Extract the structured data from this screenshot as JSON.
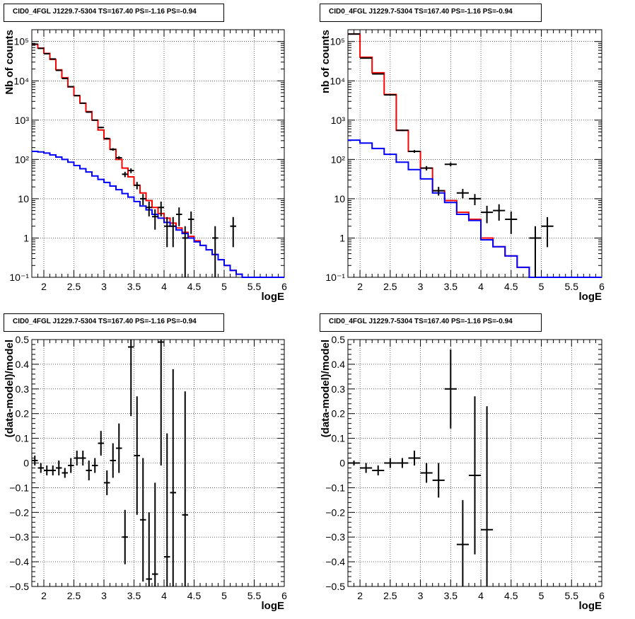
{
  "panels_title": "CID0_4FGL J1229.7-5304 TS=167.40 PS=-1.16 PS=-0.94",
  "colors": {
    "data": "#000000",
    "total_model": "#ff0000",
    "background_model": "#0000ff"
  },
  "chart_data": [
    {
      "type": "line",
      "panel": "top-left",
      "title": "CID0_4FGL J1229.7-5304 TS=167.40 PS=-1.16 PS=-0.94",
      "xlabel": "logE",
      "ylabel": "Nb of counts",
      "xlim": [
        1.8,
        6
      ],
      "ylim": [
        0.1,
        200000
      ],
      "yscale": "log",
      "grid": true,
      "xticks": [
        "2",
        "2.5",
        "3",
        "3.5",
        "4",
        "4.5",
        "5",
        "5.5",
        "6"
      ],
      "yticks": [
        "10^-1",
        "1",
        "10",
        "10^2",
        "10^3",
        "10^4",
        "10^5"
      ],
      "bin_width": 0.1,
      "bin_edges_start": 1.8,
      "series": [
        {
          "role": "total_model",
          "style": "step",
          "color": "#ff0000",
          "values": [
            85000,
            68000,
            50000,
            35000,
            19000,
            12000,
            7000,
            4200,
            2700,
            1650,
            1000,
            560,
            330,
            180,
            100,
            60,
            36,
            22,
            14,
            9,
            6,
            4.2,
            3.2,
            2.4,
            1.8,
            1.4,
            1.1,
            0.85,
            0.65,
            0.5,
            0.38,
            0.28,
            0.2,
            0.15,
            0.12,
            0.1,
            0.1,
            0.1,
            0.1,
            0.1,
            0.1,
            0.1
          ]
        },
        {
          "role": "background_model",
          "style": "step",
          "color": "#0000ff",
          "values": [
            160,
            155,
            145,
            130,
            115,
            100,
            85,
            70,
            58,
            48,
            38,
            31,
            26,
            21,
            17,
            13.5,
            11,
            8.5,
            6.5,
            5.2,
            4.0,
            3.2,
            2.5,
            2.0,
            1.6,
            1.3,
            1.0,
            0.8,
            0.65,
            0.5,
            0.38,
            0.28,
            0.2,
            0.15,
            0.12,
            0.1,
            0.1,
            0.1,
            0.1,
            0.1,
            0.1,
            0.1
          ]
        },
        {
          "role": "data",
          "style": "errorbar",
          "color": "#000000",
          "x": [
            1.85,
            1.95,
            2.05,
            2.15,
            2.25,
            2.35,
            2.45,
            2.55,
            2.65,
            2.75,
            2.85,
            2.95,
            3.05,
            3.15,
            3.25,
            3.35,
            3.45,
            3.55,
            3.65,
            3.75,
            3.85,
            3.95,
            4.05,
            4.15,
            4.25,
            4.35,
            4.45,
            4.85,
            5.15
          ],
          "values": [
            86000,
            67000,
            49000,
            36000,
            18500,
            11500,
            7100,
            4200,
            2700,
            1600,
            1000,
            650,
            340,
            180,
            110,
            42,
            52,
            22,
            10,
            6,
            3.5,
            6,
            2,
            2,
            4,
            1,
            3,
            1,
            2
          ]
        }
      ]
    },
    {
      "type": "line",
      "panel": "top-right",
      "title": "CID0_4FGL J1229.7-5304 TS=167.40 PS=-1.16 PS=-0.94",
      "xlabel": "logE",
      "ylabel": "nb of counts",
      "xlim": [
        1.8,
        6
      ],
      "ylim": [
        0.1,
        200000
      ],
      "yscale": "log",
      "grid": true,
      "xticks": [
        "2",
        "2.5",
        "3",
        "3.5",
        "4",
        "4.5",
        "5",
        "5.5",
        "6"
      ],
      "yticks": [
        "10^-1",
        "1",
        "10",
        "10^2",
        "10^3",
        "10^4",
        "10^5"
      ],
      "bin_width": 0.2,
      "bin_edges_start": 1.8,
      "series": [
        {
          "role": "total_model",
          "style": "step",
          "color": "#ff0000",
          "values": [
            155000,
            40000,
            16000,
            4500,
            550,
            160,
            60,
            16,
            9,
            4.5,
            3,
            1,
            0.6,
            0.35,
            0.18,
            0.1,
            0.1,
            0.1,
            0.1,
            0.1,
            0.1
          ]
        },
        {
          "role": "background_model",
          "style": "step",
          "color": "#0000ff",
          "values": [
            310,
            260,
            190,
            135,
            85,
            55,
            32,
            14,
            8,
            4,
            2.8,
            0.9,
            0.6,
            0.35,
            0.18,
            0.1,
            0.1,
            0.1,
            0.1,
            0.1,
            0.1
          ]
        },
        {
          "role": "data",
          "style": "errorbar",
          "color": "#000000",
          "x": [
            1.9,
            2.1,
            2.3,
            2.5,
            2.7,
            2.9,
            3.1,
            3.3,
            3.5,
            3.7,
            3.9,
            4.1,
            4.3,
            4.5,
            4.9,
            5.1
          ],
          "values": [
            155000,
            38000,
            15000,
            4400,
            550,
            160,
            60,
            16,
            75,
            14,
            10,
            4.5,
            5,
            3,
            1,
            2
          ]
        }
      ]
    },
    {
      "type": "scatter",
      "panel": "bottom-left",
      "title": "CID0_4FGL J1229.7-5304 TS=167.40 PS=-1.16 PS=-0.94",
      "xlabel": "logE",
      "ylabel": "(data-model)/model",
      "xlim": [
        1.8,
        6
      ],
      "ylim": [
        -0.5,
        0.5
      ],
      "yscale": "linear",
      "grid": true,
      "xticks": [
        "2",
        "2.5",
        "3",
        "3.5",
        "4",
        "4.5",
        "5",
        "5.5",
        "6"
      ],
      "yticks": [
        "-0.5",
        "-0.4",
        "-0.3",
        "-0.2",
        "-0.1",
        "0",
        "0.1",
        "0.2",
        "0.3",
        "0.4",
        "0.5"
      ],
      "bin_width": 0.1,
      "series": [
        {
          "role": "residuals",
          "color": "#000000",
          "x": [
            1.85,
            1.95,
            2.05,
            2.15,
            2.25,
            2.35,
            2.45,
            2.55,
            2.65,
            2.75,
            2.85,
            2.95,
            3.05,
            3.15,
            3.25,
            3.35,
            3.45,
            3.55,
            3.65,
            3.75,
            3.85,
            3.95,
            4.05,
            4.15,
            4.35
          ],
          "y": [
            0.01,
            -0.02,
            -0.03,
            -0.03,
            -0.02,
            -0.04,
            -0.01,
            0.02,
            0.02,
            -0.03,
            -0.01,
            0.08,
            -0.08,
            0.01,
            0.06,
            -0.3,
            0.47,
            0.03,
            -0.23,
            -0.47,
            -0.45,
            0.49,
            -0.38,
            -0.12,
            -0.21
          ],
          "yerr": [
            0.02,
            0.02,
            0.02,
            0.02,
            0.03,
            0.02,
            0.03,
            0.03,
            0.03,
            0.04,
            0.03,
            0.05,
            0.05,
            0.07,
            0.1,
            0.11,
            0.28,
            0.24,
            0.25,
            0.27,
            0.37,
            0.5,
            0.5,
            0.5,
            0.5
          ]
        }
      ]
    },
    {
      "type": "scatter",
      "panel": "bottom-right",
      "title": "CID0_4FGL J1229.7-5304 TS=167.40 PS=-1.16 PS=-0.94",
      "xlabel": "logE",
      "ylabel": "(data-model)/model",
      "xlim": [
        1.8,
        6
      ],
      "ylim": [
        -0.5,
        0.5
      ],
      "yscale": "linear",
      "grid": true,
      "xticks": [
        "2",
        "2.5",
        "3",
        "3.5",
        "4",
        "4.5",
        "5",
        "5.5",
        "6"
      ],
      "yticks": [
        "-0.5",
        "-0.4",
        "-0.3",
        "-0.2",
        "-0.1",
        "0",
        "0.1",
        "0.2",
        "0.3",
        "0.4",
        "0.5"
      ],
      "bin_width": 0.2,
      "series": [
        {
          "role": "residuals",
          "color": "#000000",
          "x": [
            1.9,
            2.1,
            2.3,
            2.5,
            2.7,
            2.9,
            3.1,
            3.3,
            3.5,
            3.7,
            3.9,
            4.1
          ],
          "y": [
            0.0,
            -0.02,
            -0.03,
            0.0,
            0.0,
            0.02,
            -0.04,
            -0.07,
            0.3,
            -0.33,
            -0.05,
            -0.27
          ],
          "yerr": [
            0.01,
            0.02,
            0.02,
            0.02,
            0.02,
            0.03,
            0.04,
            0.07,
            0.16,
            0.18,
            0.32,
            0.5
          ]
        }
      ]
    }
  ]
}
